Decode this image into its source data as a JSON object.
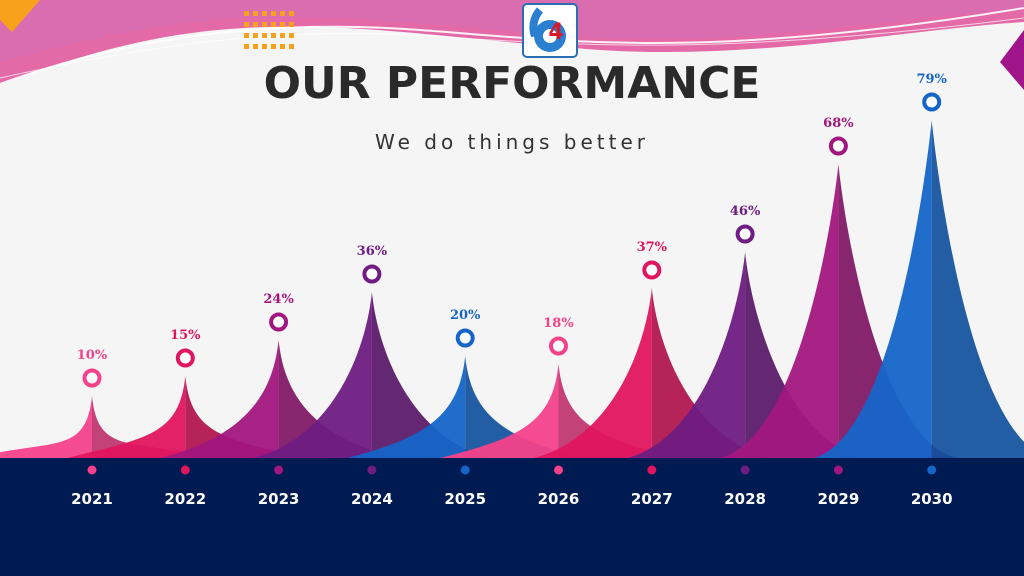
{
  "title": "OUR PERFORMANCE",
  "subtitle": "We do things better",
  "logo": {
    "text": "4"
  },
  "colors": {
    "band": "#001a52",
    "pink": "#f4418a",
    "crimson": "#e0155f",
    "magenta": "#a2177f",
    "purple": "#6f1c83",
    "blue": "#1565c8",
    "orange": "#f7a21a"
  },
  "chart_data": {
    "type": "area",
    "categories": [
      "2021",
      "2022",
      "2023",
      "2024",
      "2025",
      "2026",
      "2027",
      "2028",
      "2029",
      "2030"
    ],
    "values": [
      10,
      15,
      24,
      36,
      20,
      18,
      37,
      46,
      68,
      79
    ],
    "value_labels": [
      "10%",
      "15%",
      "24%",
      "36%",
      "20%",
      "18%",
      "37%",
      "46%",
      "68%",
      "79%"
    ],
    "point_colors": [
      "pink",
      "crimson",
      "magenta",
      "purple",
      "blue",
      "pink",
      "crimson",
      "purple",
      "magenta",
      "blue"
    ],
    "legend": "none",
    "grid": false
  }
}
